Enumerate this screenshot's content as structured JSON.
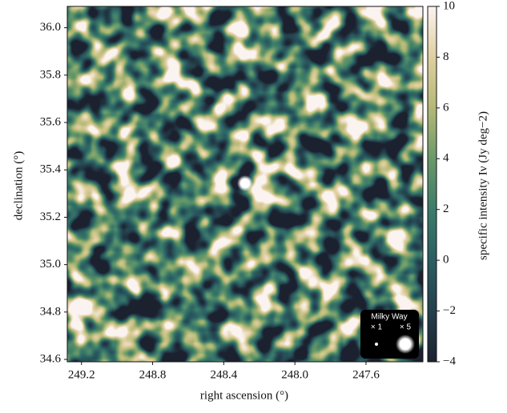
{
  "chart_data": {
    "type": "heatmap",
    "x_label": "right ascension (°)",
    "y_label": "declination (°)",
    "colorbar_label": "specific intensity Iν (Jy deg−2)",
    "xlim": [
      249.28,
      247.28
    ],
    "xticks": [
      249.2,
      248.8,
      248.4,
      {
        "value": 248,
        "label": "248.0"
      },
      247.6
    ],
    "ylim": [
      34.59,
      36.09
    ],
    "yticks": [
      34.6,
      34.8,
      {
        "value": 35,
        "label": "35.0"
      },
      35.2,
      35.4,
      35.6,
      35.8,
      {
        "value": 36,
        "label": "36.0"
      }
    ],
    "clim": [
      -4,
      10
    ],
    "cticks": [
      {
        "value": -4,
        "label": "−4"
      },
      {
        "value": -2,
        "label": "−2"
      },
      0,
      2,
      4,
      6,
      8,
      10
    ],
    "colormap": [
      "#1c2230",
      "#24404c",
      "#2a5e62",
      "#3c7c6a",
      "#6a9a68",
      "#b4b876",
      "#e0cfa0",
      "#fbf3f0"
    ],
    "inset": {
      "title": "Milky Way",
      "labels": [
        "× 1",
        "× 5"
      ]
    }
  }
}
